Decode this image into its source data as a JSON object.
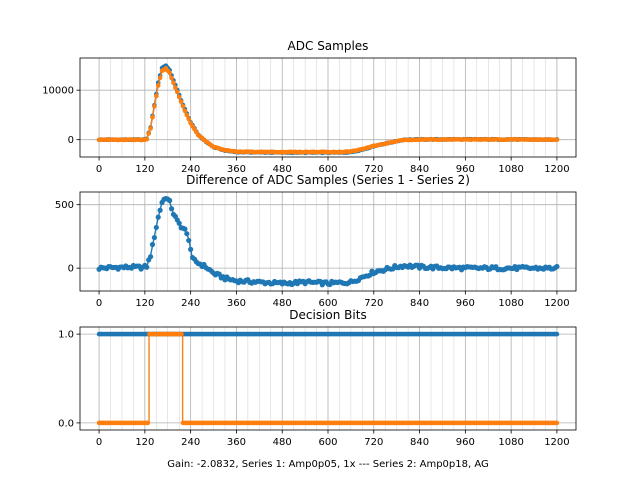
{
  "figure_xlabel": "Gain: -2.0832, Series 1: Amp0p05, 1x --- Series 2: Amp0p18, AG",
  "colors": {
    "series1": "#1f77b4",
    "series2": "#ff7f0e"
  },
  "chart_data": [
    {
      "type": "scatter",
      "title": "ADC Samples",
      "xlim": [
        -50,
        1250
      ],
      "ylim": [
        -3500,
        16500
      ],
      "xticks": [
        0,
        120,
        240,
        360,
        480,
        600,
        720,
        840,
        960,
        1080,
        1200
      ],
      "yticks": [
        0,
        10000
      ],
      "ytick_labels": [
        "0",
        "10000"
      ],
      "series": [
        {
          "name": "Series 1",
          "color": "#1f77b4",
          "style": "line-markers",
          "points": [
            [
              0,
              0
            ],
            [
              100,
              0
            ],
            [
              118,
              0
            ],
            [
              125,
              200
            ],
            [
              135,
              2500
            ],
            [
              145,
              7000
            ],
            [
              155,
              11500
            ],
            [
              165,
              14500
            ],
            [
              175,
              15000
            ],
            [
              185,
              14000
            ],
            [
              200,
              11000
            ],
            [
              220,
              7000
            ],
            [
              240,
              3500
            ],
            [
              260,
              1000
            ],
            [
              280,
              -400
            ],
            [
              300,
              -1500
            ],
            [
              330,
              -2200
            ],
            [
              360,
              -2500
            ],
            [
              420,
              -2550
            ],
            [
              480,
              -2600
            ],
            [
              540,
              -2600
            ],
            [
              600,
              -2600
            ],
            [
              640,
              -2600
            ],
            [
              660,
              -2500
            ],
            [
              680,
              -2200
            ],
            [
              700,
              -1800
            ],
            [
              720,
              -1300
            ],
            [
              750,
              -800
            ],
            [
              780,
              -300
            ],
            [
              800,
              0
            ],
            [
              840,
              50
            ],
            [
              960,
              60
            ],
            [
              1080,
              40
            ],
            [
              1200,
              0
            ]
          ]
        },
        {
          "name": "Series 2",
          "color": "#ff7f0e",
          "style": "line-markers",
          "points": [
            [
              0,
              0
            ],
            [
              100,
              0
            ],
            [
              118,
              0
            ],
            [
              125,
              150
            ],
            [
              135,
              2300
            ],
            [
              145,
              6700
            ],
            [
              155,
              11000
            ],
            [
              165,
              13900
            ],
            [
              175,
              14450
            ],
            [
              185,
              13450
            ],
            [
              200,
              10550
            ],
            [
              220,
              6700
            ],
            [
              240,
              3300
            ],
            [
              260,
              950
            ],
            [
              280,
              -350
            ],
            [
              300,
              -1450
            ],
            [
              330,
              -2130
            ],
            [
              360,
              -2430
            ],
            [
              420,
              -2470
            ],
            [
              480,
              -2500
            ],
            [
              540,
              -2490
            ],
            [
              600,
              -2480
            ],
            [
              640,
              -2480
            ],
            [
              660,
              -2380
            ],
            [
              680,
              -2090
            ],
            [
              700,
              -1700
            ],
            [
              720,
              -1250
            ],
            [
              750,
              -800
            ],
            [
              780,
              -330
            ],
            [
              800,
              -30
            ],
            [
              840,
              20
            ],
            [
              960,
              40
            ],
            [
              1080,
              30
            ],
            [
              1200,
              0
            ]
          ]
        }
      ]
    },
    {
      "type": "scatter",
      "title": "Difference of ADC Samples (Series 1 - Series 2)",
      "xlim": [
        -50,
        1250
      ],
      "ylim": [
        -180,
        600
      ],
      "xticks": [
        0,
        120,
        240,
        360,
        480,
        600,
        720,
        840,
        960,
        1080,
        1200
      ],
      "yticks": [
        0,
        500
      ],
      "ytick_labels": [
        "0",
        "500"
      ],
      "series": [
        {
          "name": "Series 1 - Series 2",
          "color": "#1f77b4",
          "style": "line-markers",
          "points": [
            [
              0,
              0
            ],
            [
              40,
              5
            ],
            [
              80,
              8
            ],
            [
              115,
              5
            ],
            [
              125,
              15
            ],
            [
              135,
              100
            ],
            [
              145,
              250
            ],
            [
              155,
              400
            ],
            [
              165,
              520
            ],
            [
              175,
              560
            ],
            [
              185,
              520
            ],
            [
              195,
              430
            ],
            [
              205,
              370
            ],
            [
              215,
              330
            ],
            [
              225,
              300
            ],
            [
              235,
              230
            ],
            [
              245,
              70
            ],
            [
              260,
              40
            ],
            [
              280,
              10
            ],
            [
              300,
              -40
            ],
            [
              330,
              -80
            ],
            [
              360,
              -100
            ],
            [
              420,
              -110
            ],
            [
              480,
              -120
            ],
            [
              540,
              -110
            ],
            [
              600,
              -120
            ],
            [
              660,
              -110
            ],
            [
              690,
              -70
            ],
            [
              720,
              -30
            ],
            [
              750,
              -10
            ],
            [
              780,
              10
            ],
            [
              800,
              20
            ],
            [
              840,
              10
            ],
            [
              880,
              5
            ],
            [
              960,
              0
            ],
            [
              1080,
              0
            ],
            [
              1200,
              0
            ]
          ]
        }
      ]
    },
    {
      "type": "scatter",
      "title": "Decision Bits",
      "xlim": [
        -50,
        1250
      ],
      "ylim": [
        -0.08,
        1.08
      ],
      "xticks": [
        0,
        120,
        240,
        360,
        480,
        600,
        720,
        840,
        960,
        1080,
        1200
      ],
      "yticks": [
        0,
        1
      ],
      "ytick_labels": [
        "0.0",
        "1.0"
      ],
      "series": [
        {
          "name": "Series 1",
          "color": "#1f77b4",
          "style": "line-markers",
          "points": [
            [
              0,
              1
            ],
            [
              1200,
              1
            ]
          ]
        },
        {
          "name": "Series 2",
          "color": "#ff7f0e",
          "style": "line-markers",
          "points": [
            [
              0,
              0
            ],
            [
              131,
              0
            ],
            [
              131,
              1
            ],
            [
              219,
              1
            ],
            [
              219,
              0
            ],
            [
              1200,
              0
            ]
          ]
        }
      ]
    }
  ]
}
